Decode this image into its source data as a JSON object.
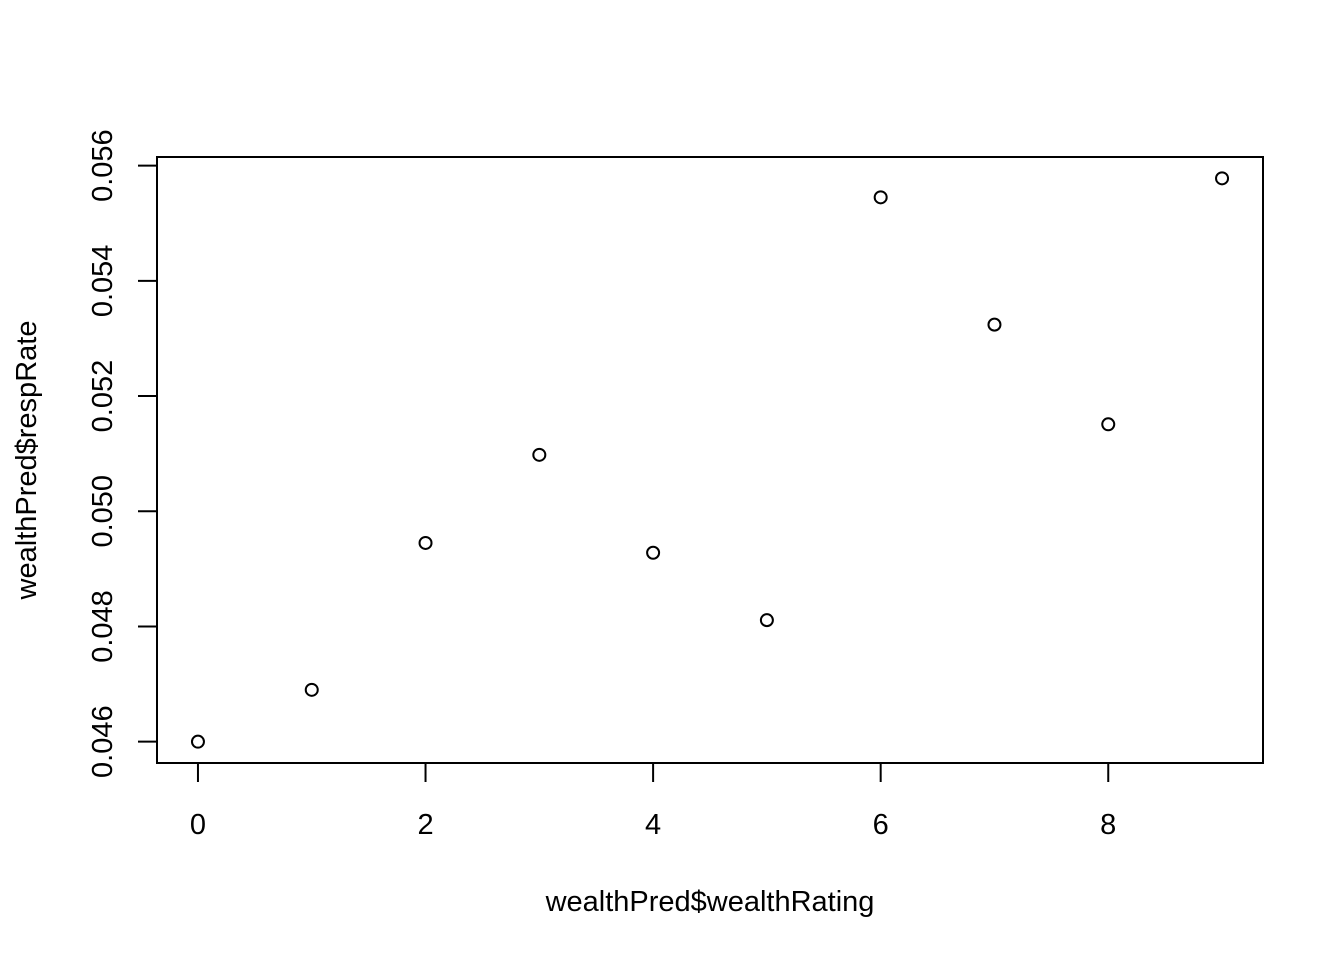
{
  "chart_data": {
    "type": "scatter",
    "title": "",
    "xlabel": "wealthPred$wealthRating",
    "ylabel": "wealthPred$respRate",
    "x": [
      0,
      1,
      2,
      3,
      4,
      5,
      6,
      7,
      8,
      9
    ],
    "y": [
      0.046,
      0.0469,
      0.04945,
      0.05098,
      0.04928,
      0.04811,
      0.05545,
      0.05324,
      0.05151,
      0.05578
    ],
    "x_ticks": [
      0,
      2,
      4,
      6,
      8
    ],
    "x_tick_labels": [
      "0",
      "2",
      "4",
      "6",
      "8"
    ],
    "y_ticks": [
      0.046,
      0.048,
      0.05,
      0.052,
      0.054,
      0.056
    ],
    "y_tick_labels": [
      "0.046",
      "0.048",
      "0.050",
      "0.052",
      "0.054",
      "0.056"
    ],
    "xlim": [
      -0.36,
      9.36
    ],
    "ylim": [
      0.04563,
      0.05615
    ],
    "grid": false,
    "marker": "open-circle",
    "colors": {
      "points": "#000000",
      "axes": "#000000",
      "background": "#ffffff"
    }
  }
}
